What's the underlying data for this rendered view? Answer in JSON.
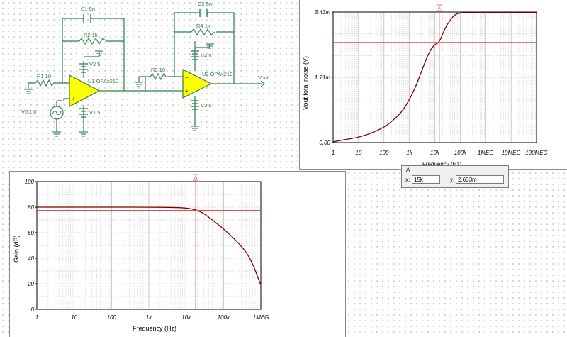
{
  "schematic": {
    "components": [
      {
        "id": "c1",
        "label": "C1 5n"
      },
      {
        "id": "r2",
        "label": "R2 1k"
      },
      {
        "id": "v2",
        "label": "V2 5"
      },
      {
        "id": "r1",
        "label": "R1 10"
      },
      {
        "id": "u1",
        "label": "U1 OPAx210"
      },
      {
        "id": "vg1",
        "label": "VG1 0"
      },
      {
        "id": "v1",
        "label": "V1 5"
      },
      {
        "id": "c2",
        "label": "C2 5n"
      },
      {
        "id": "r4",
        "label": "R4 1k"
      },
      {
        "id": "v4",
        "label": "V4 5"
      },
      {
        "id": "r3",
        "label": "R3 10"
      },
      {
        "id": "u2",
        "label": "U2 OPAx210"
      },
      {
        "id": "v3",
        "label": "V3 5"
      }
    ],
    "output_label": "Vout",
    "colors": {
      "wire": "#2f7f4f",
      "label": "#2f7f4f",
      "opamp_fill": "#ffff00",
      "opamp_stroke": "#2f7f4f",
      "plus": "#cc0000"
    }
  },
  "noise_chart": {
    "ylabel": "Vout total noise (V)",
    "xlabel": "Frequency (Hz)",
    "cursor_label": "A",
    "cursor_readout": {
      "title": "A",
      "x_label": "x:",
      "x_value": "15k",
      "y_label": "y:",
      "y_value": "2.633m"
    }
  },
  "gain_chart": {
    "ylabel": "Gain (dB)",
    "xlabel": "Frequency (Hz)",
    "cursor_label": "A"
  },
  "chart_data": [
    {
      "type": "line",
      "title": "",
      "xlabel": "Frequency (Hz)",
      "ylabel": "Vout total noise (V)",
      "x_scale": "log",
      "xlim": [
        1,
        100000000
      ],
      "ylim": [
        0,
        0.00343
      ],
      "x_tick_labels": [
        "1",
        "10",
        "100",
        "1k",
        "10k",
        "100k",
        "1MEG",
        "10MEG",
        "100MEG"
      ],
      "y_tick_labels": [
        "0.00",
        "1.71m",
        "3.43m"
      ],
      "grid": true,
      "series": [
        {
          "color": "#7a0000",
          "points": [
            [
              1,
              2e-05
            ],
            [
              3,
              8e-05
            ],
            [
              10,
              0.00014
            ],
            [
              30,
              0.00024
            ],
            [
              100,
              0.0004
            ],
            [
              200,
              0.00055
            ],
            [
              500,
              0.0008
            ],
            [
              1000,
              0.00112
            ],
            [
              2000,
              0.00155
            ],
            [
              3000,
              0.00188
            ],
            [
              5000,
              0.00225
            ],
            [
              7000,
              0.00245
            ],
            [
              10000,
              0.00258
            ],
            [
              15000,
              0.002633
            ],
            [
              20000,
              0.00285
            ],
            [
              30000,
              0.0031
            ],
            [
              50000,
              0.0033
            ],
            [
              70000,
              0.00338
            ],
            [
              100000,
              0.00341
            ],
            [
              1000000,
              0.00342
            ],
            [
              100000000,
              0.00342
            ]
          ]
        }
      ],
      "cursor": {
        "label": "A",
        "x": 15000,
        "y": 0.002633
      }
    },
    {
      "type": "line",
      "title": "",
      "xlabel": "Frequency (Hz)",
      "ylabel": "Gain (dB)",
      "x_scale": "log",
      "xlim": [
        1,
        1000000
      ],
      "ylim": [
        0,
        100
      ],
      "x_tick_labels": [
        "1",
        "10",
        "100",
        "1k",
        "10k",
        "100k",
        "1MEG"
      ],
      "y_tick_labels": [
        "0",
        "20",
        "40",
        "60",
        "80",
        "100"
      ],
      "grid": true,
      "series": [
        {
          "color": "#7a0000",
          "points": [
            [
              1,
              80
            ],
            [
              100,
              80
            ],
            [
              1000,
              80
            ],
            [
              5000,
              79.8
            ],
            [
              10000,
              79.3
            ],
            [
              15000,
              78.5
            ],
            [
              20000,
              77.5
            ],
            [
              30000,
              75
            ],
            [
              50000,
              70
            ],
            [
              100000,
              63
            ],
            [
              200000,
              55
            ],
            [
              500000,
              42
            ],
            [
              1000000,
              19
            ]
          ]
        }
      ],
      "cursor": {
        "label": "A",
        "x": 18000,
        "y": 77.5
      }
    }
  ]
}
